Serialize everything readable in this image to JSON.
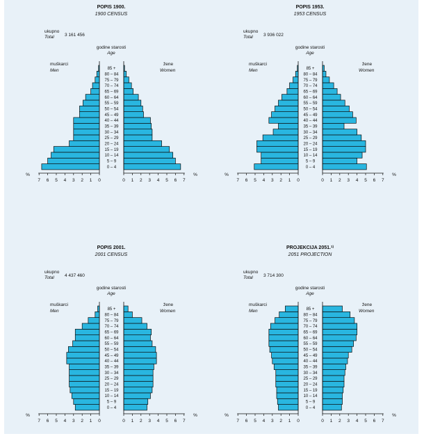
{
  "common": {
    "total_label": "ukupno",
    "total_label_en": "Total",
    "age_label": "godine starosti",
    "age_label_en": "Age",
    "men_label": "muškarci",
    "men_label_en": "Men",
    "women_label": "žene",
    "women_label_en": "Women",
    "pct": "%",
    "age_groups": [
      "0 – 4",
      "5 – 9",
      "10 – 14",
      "15 – 19",
      "20 – 24",
      "25 – 29",
      "30 – 34",
      "35 – 39",
      "40 – 44",
      "45 – 49",
      "50 – 54",
      "55 – 59",
      "60 – 64",
      "65 – 69",
      "70 – 74",
      "75 – 79",
      "80 – 84",
      "85 +"
    ],
    "xticks": [
      "7",
      "6",
      "5",
      "4",
      "3",
      "2",
      "1",
      "0"
    ],
    "xticks_right": [
      "0",
      "1",
      "2",
      "3",
      "4",
      "5",
      "6",
      "7"
    ],
    "bar_color": "#29b6e0"
  },
  "chart_data": [
    {
      "type": "bar",
      "title": "POPIS 1900.",
      "subtitle": "1900 CENSUS",
      "total": "3 161 456",
      "men_label": "muškarci",
      "xlim": [
        0,
        7
      ],
      "men": [
        6.7,
        6.0,
        5.6,
        5.3,
        3.5,
        3.0,
        3.0,
        3.0,
        3.0,
        2.3,
        2.3,
        1.9,
        1.6,
        1.0,
        0.8,
        0.5,
        0.3,
        0.1
      ],
      "women": [
        6.6,
        6.0,
        5.7,
        5.3,
        4.4,
        3.3,
        3.3,
        3.2,
        3.1,
        2.3,
        2.2,
        2.0,
        1.7,
        1.1,
        0.9,
        0.6,
        0.3,
        0.1
      ]
    },
    {
      "type": "bar",
      "title": "POPIS 1953.",
      "subtitle": "1953 CENSUS",
      "total": "3 936 022",
      "men_label": "muškarci",
      "xlim": [
        0,
        7
      ],
      "men": [
        5.1,
        4.3,
        4.3,
        4.8,
        4.8,
        4.1,
        2.9,
        2.3,
        3.4,
        3.1,
        2.7,
        2.3,
        1.9,
        1.3,
        1.0,
        0.6,
        0.3,
        0.1
      ],
      "women": [
        5.1,
        4.0,
        4.6,
        5.0,
        5.0,
        4.5,
        4.0,
        2.5,
        3.9,
        3.5,
        3.1,
        2.6,
        2.1,
        1.7,
        1.3,
        0.8,
        0.4,
        0.2
      ]
    },
    {
      "type": "bar",
      "title": "POPIS 2001.",
      "subtitle": "2001 CENSUS",
      "total": "4 437 460",
      "men_label": "muškarci",
      "xlim": [
        0,
        7
      ],
      "men": [
        2.8,
        3.0,
        3.2,
        3.4,
        3.5,
        3.5,
        3.5,
        3.5,
        3.8,
        3.8,
        3.6,
        3.1,
        2.8,
        2.8,
        2.0,
        1.3,
        0.5,
        0.2
      ],
      "women": [
        2.7,
        2.8,
        3.1,
        3.3,
        3.4,
        3.4,
        3.4,
        3.5,
        3.8,
        3.8,
        3.7,
        3.3,
        3.1,
        3.2,
        2.7,
        2.1,
        1.0,
        0.5
      ]
    },
    {
      "type": "bar",
      "title": "PROJEKCIJA 2051.",
      "subtitle": "2051 PROJECTION",
      "title_mark": "1)",
      "total": "3 714 300",
      "men_label": "muškarci",
      "xlim": [
        0,
        7
      ],
      "men": [
        2.3,
        2.4,
        2.5,
        2.5,
        2.6,
        2.6,
        2.6,
        2.8,
        3.0,
        3.1,
        3.3,
        3.4,
        3.4,
        3.4,
        3.2,
        2.7,
        2.2,
        1.5
      ],
      "women": [
        2.2,
        2.3,
        2.3,
        2.4,
        2.5,
        2.5,
        2.6,
        2.7,
        2.9,
        3.0,
        3.4,
        3.6,
        3.9,
        4.0,
        4.0,
        3.7,
        3.2,
        2.3
      ]
    }
  ]
}
